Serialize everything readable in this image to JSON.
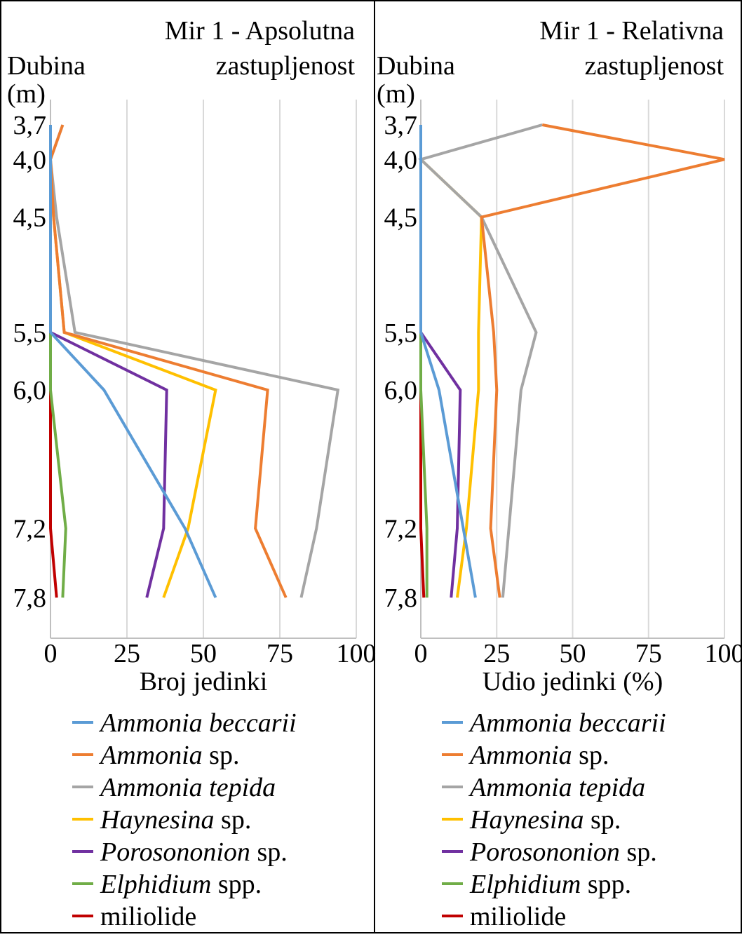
{
  "chart_data": [
    {
      "type": "line",
      "title_lines": [
        "Mir 1 - Apsolutna",
        "zastupljenost"
      ],
      "y_axis_label_lines": [
        "Dubina",
        "(m)"
      ],
      "xlabel": "Broj jedinki",
      "xlim": [
        0,
        100
      ],
      "x_ticks": [
        "0",
        "25",
        "50",
        "75",
        "100"
      ],
      "depths": [
        3.7,
        4.0,
        4.5,
        5.5,
        6.0,
        7.2,
        7.8
      ],
      "depth_labels": [
        "3,7",
        "4,0",
        "4,5",
        "5,5",
        "6,0",
        "7,2",
        "7,8"
      ],
      "series": [
        {
          "name_italic": "Ammonia beccarii",
          "name_plain": "",
          "color": "#5b9bd5",
          "values": [
            0,
            0,
            0,
            0,
            17.5,
            44,
            54
          ]
        },
        {
          "name_italic": "Ammonia",
          "name_plain": " sp.",
          "color": "#ed7d31",
          "values": [
            4,
            0,
            1,
            4.5,
            71,
            67,
            77
          ]
        },
        {
          "name_italic": "Ammonia tepida",
          "name_plain": "",
          "color": "#a5a5a5",
          "values": [
            4,
            0,
            2,
            8,
            94,
            87,
            82
          ]
        },
        {
          "name_italic": "Haynesina",
          "name_plain": " sp.",
          "color": "#ffc000",
          "values": [
            0,
            0,
            1,
            4.5,
            54,
            45,
            37
          ]
        },
        {
          "name_italic": "Porosononion",
          "name_plain": " sp.",
          "color": "#7030a0",
          "values": [
            0,
            0,
            0,
            0,
            38,
            37,
            31.5
          ]
        },
        {
          "name_italic": "Elphidium",
          "name_plain": " spp.",
          "color": "#70ad47",
          "values": [
            0,
            0,
            0,
            0,
            0,
            5,
            4
          ]
        },
        {
          "name_italic": "",
          "name_plain": "miliolide",
          "color": "#c00000",
          "values": [
            0,
            0,
            0,
            0,
            0,
            0,
            2
          ]
        }
      ]
    },
    {
      "type": "line",
      "title_lines": [
        "Mir 1 - Relativna",
        "zastupljenost"
      ],
      "y_axis_label_lines": [
        "Dubina",
        "(m)"
      ],
      "xlabel": "Udio jedinki (%)",
      "xlim": [
        0,
        100
      ],
      "x_ticks": [
        "0",
        "25",
        "50",
        "75",
        "100"
      ],
      "depths": [
        3.7,
        4.0,
        4.5,
        5.5,
        6.0,
        7.2,
        7.8
      ],
      "depth_labels": [
        "3,7",
        "4,0",
        "4,5",
        "5,5",
        "6,0",
        "7,2",
        "7,8"
      ],
      "series": [
        {
          "name_italic": "Ammonia beccarii",
          "name_plain": "",
          "color": "#5b9bd5",
          "values": [
            0,
            0,
            0,
            0,
            6,
            14,
            18
          ]
        },
        {
          "name_italic": "Ammonia",
          "name_plain": " sp.",
          "color": "#ed7d31",
          "values": [
            40,
            100,
            20,
            24,
            25,
            23,
            26
          ]
        },
        {
          "name_italic": "Ammonia tepida",
          "name_plain": "",
          "color": "#a5a5a5",
          "values": [
            40,
            0,
            20,
            38,
            33,
            29,
            27
          ]
        },
        {
          "name_italic": "Haynesina",
          "name_plain": " sp.",
          "color": "#ffc000",
          "values": [
            0,
            0,
            20,
            19,
            19,
            15,
            12
          ]
        },
        {
          "name_italic": "Porosononion",
          "name_plain": " sp.",
          "color": "#7030a0",
          "values": [
            0,
            0,
            0,
            0,
            13,
            12,
            10
          ]
        },
        {
          "name_italic": "Elphidium",
          "name_plain": " spp.",
          "color": "#70ad47",
          "values": [
            0,
            0,
            0,
            0,
            0,
            2,
            2
          ]
        },
        {
          "name_italic": "",
          "name_plain": "miliolide",
          "color": "#c00000",
          "values": [
            0,
            0,
            0,
            0,
            0,
            0,
            1
          ]
        }
      ]
    }
  ]
}
